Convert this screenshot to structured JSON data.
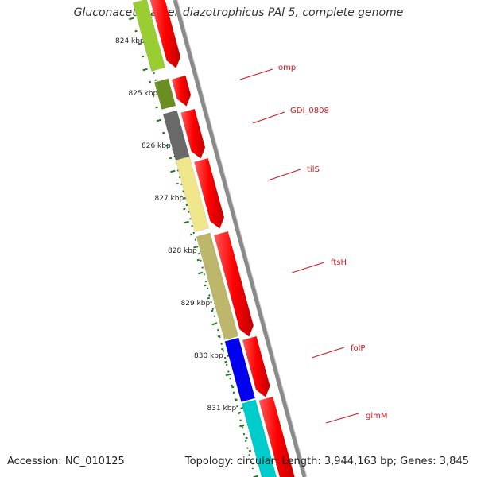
{
  "title": "Gluconacetobacter diazotrophicus PAl 5, complete genome",
  "footer": {
    "accession": "Accession: NC_010125",
    "summary": "Topology: circular; Length: 3,944,163 bp; Genes: 3,845"
  },
  "ruler": {
    "tick_labels": [
      "824 kbp",
      "825 kbp",
      "826 kbp",
      "827 kbp",
      "828 kbp",
      "829 kbp",
      "830 kbp",
      "831 kbp"
    ],
    "color": "#1a7a1a"
  },
  "gene_labels": [
    "omp",
    "GDI_0808",
    "tilS",
    "ftsH",
    "folP",
    "glmM"
  ],
  "colors": {
    "forward_strand_cds": "#ff0000",
    "backbone": "#8a8a8a",
    "label": "#d0181e",
    "features": [
      "#9acd32",
      "#6b8e23",
      "#696969",
      "#f0e68c",
      "#bdb76b",
      "#0000ee",
      "#00cccc"
    ]
  }
}
